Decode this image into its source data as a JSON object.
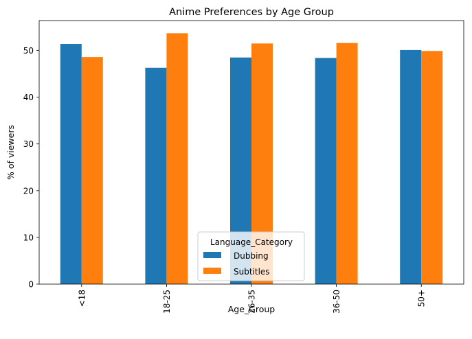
{
  "chart_data": {
    "type": "bar",
    "title": "Anime Preferences by Age Group",
    "xlabel": "Age_Group",
    "ylabel": "% of viewers",
    "categories": [
      "<18",
      "18-25",
      "26-35",
      "36-50",
      "50+"
    ],
    "series": [
      {
        "name": "Dubbing",
        "color": "#1f77b4",
        "values": [
          51.4,
          46.3,
          48.5,
          48.4,
          50.1
        ]
      },
      {
        "name": "Subtitles",
        "color": "#ff7f0e",
        "values": [
          48.6,
          53.7,
          51.5,
          51.6,
          49.9
        ]
      }
    ],
    "ylim": [
      0,
      56.4
    ],
    "yticks": [
      0,
      10,
      20,
      30,
      40,
      50
    ],
    "grid": false,
    "legend": {
      "title": "Language_Category",
      "placement": "bottom-center"
    }
  }
}
